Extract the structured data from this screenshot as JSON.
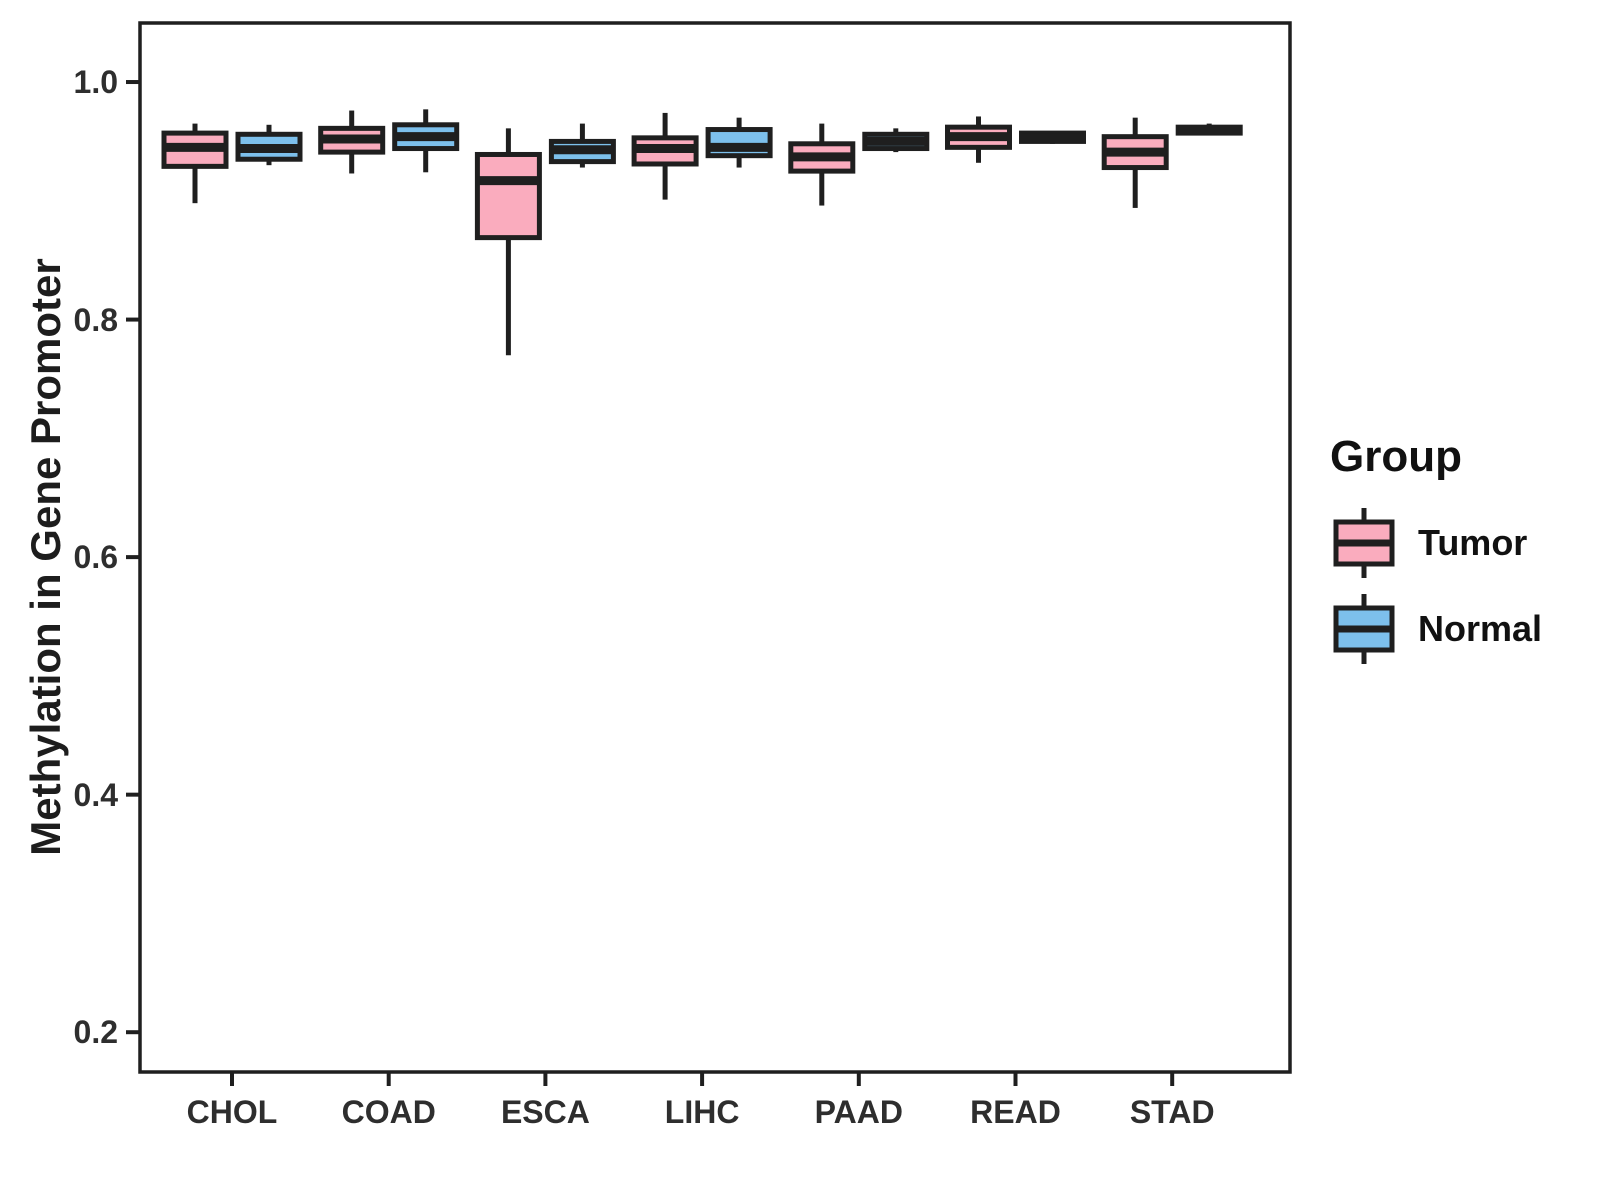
{
  "chart_data": {
    "type": "boxplot",
    "title": "",
    "ylabel": "Methylation in Gene Promoter",
    "xlabel": "",
    "legend_title": "Group",
    "legend_position": "right",
    "grid": false,
    "panel_border": true,
    "categories": [
      "CHOL",
      "COAD",
      "ESCA",
      "LIHC",
      "PAAD",
      "READ",
      "STAD"
    ],
    "y_ticks": [
      1.0,
      0.8,
      0.6,
      0.4,
      0.2
    ],
    "y_tick_labels": [
      "1.0",
      "0.8",
      "0.6",
      "0.4",
      "0.2"
    ],
    "ylim": [
      0.1665,
      1.0497
    ],
    "groups": [
      {
        "name": "Tumor",
        "color": "#FAACBE"
      },
      {
        "name": "Normal",
        "color": "#7DC0EC"
      }
    ],
    "outline_color": "#1f1f1f",
    "series": [
      {
        "name": "Tumor",
        "color": "#FAACBE",
        "values": [
          {
            "category": "CHOL",
            "min": 0.898,
            "q1": 0.929,
            "median": 0.945,
            "q3": 0.957,
            "max": 0.965
          },
          {
            "category": "COAD",
            "min": 0.923,
            "q1": 0.941,
            "median": 0.952,
            "q3": 0.961,
            "max": 0.976
          },
          {
            "category": "ESCA",
            "min": 0.77,
            "q1": 0.869,
            "median": 0.917,
            "q3": 0.939,
            "max": 0.961
          },
          {
            "category": "LIHC",
            "min": 0.901,
            "q1": 0.931,
            "median": 0.944,
            "q3": 0.953,
            "max": 0.974
          },
          {
            "category": "PAAD",
            "min": 0.896,
            "q1": 0.925,
            "median": 0.937,
            "q3": 0.948,
            "max": 0.965
          },
          {
            "category": "READ",
            "min": 0.932,
            "q1": 0.945,
            "median": 0.954,
            "q3": 0.962,
            "max": 0.971
          },
          {
            "category": "STAD",
            "min": 0.894,
            "q1": 0.928,
            "median": 0.941,
            "q3": 0.954,
            "max": 0.97
          }
        ]
      },
      {
        "name": "Normal",
        "color": "#7DC0EC",
        "values": [
          {
            "category": "CHOL",
            "min": 0.93,
            "q1": 0.935,
            "median": 0.944,
            "q3": 0.956,
            "max": 0.964
          },
          {
            "category": "COAD",
            "min": 0.924,
            "q1": 0.944,
            "median": 0.954,
            "q3": 0.964,
            "max": 0.977
          },
          {
            "category": "ESCA",
            "min": 0.928,
            "q1": 0.933,
            "median": 0.943,
            "q3": 0.95,
            "max": 0.965
          },
          {
            "category": "LIHC",
            "min": 0.928,
            "q1": 0.938,
            "median": 0.945,
            "q3": 0.96,
            "max": 0.97
          },
          {
            "category": "PAAD",
            "min": 0.941,
            "q1": 0.944,
            "median": 0.95,
            "q3": 0.956,
            "max": 0.961
          },
          {
            "category": "READ",
            "min": 0.948,
            "q1": 0.95,
            "median": 0.953,
            "q3": 0.957,
            "max": 0.958
          },
          {
            "category": "STAD",
            "min": 0.956,
            "q1": 0.957,
            "median": 0.96,
            "q3": 0.962,
            "max": 0.965
          }
        ]
      }
    ]
  }
}
